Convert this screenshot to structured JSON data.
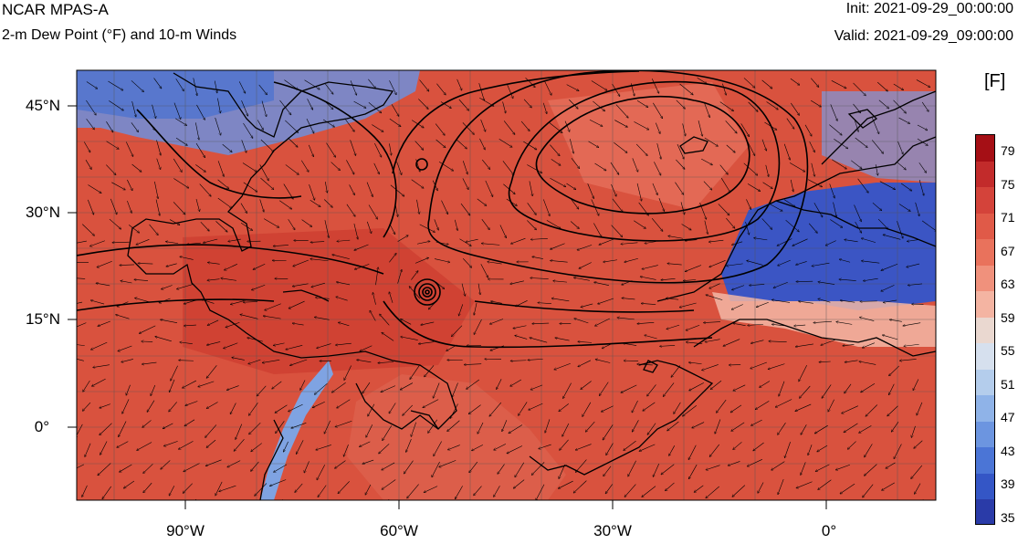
{
  "header": {
    "title": "NCAR MPAS-A",
    "subtitle": "2-m Dew Point (°F) and 10-m Winds",
    "init": "Init: 2021-09-29_00:00:00",
    "valid": "Valid: 2021-09-29_09:00:00"
  },
  "map": {
    "lat_labels": [
      {
        "text": "45°N",
        "lat": 45
      },
      {
        "text": "30°N",
        "lat": 30
      },
      {
        "text": "15°N",
        "lat": 15
      },
      {
        "text": "0°",
        "lat": 0
      }
    ],
    "lon_labels": [
      {
        "text": "90°W",
        "lon": -90
      },
      {
        "text": "60°W",
        "lon": -60
      },
      {
        "text": "30°W",
        "lon": -30
      },
      {
        "text": "0°",
        "lon": 0
      }
    ],
    "extent": {
      "lon_min": -105,
      "lon_max": 15,
      "lat_min": -10,
      "lat_max": 50
    }
  },
  "colorbar": {
    "units": "[F]",
    "labels": [
      "79",
      "75",
      "71",
      "67",
      "63",
      "59",
      "55",
      "51",
      "47",
      "43",
      "39",
      "35"
    ],
    "colors": [
      "#a50f15",
      "#c22b2b",
      "#d4433a",
      "#e05a48",
      "#e9725c",
      "#f0917c",
      "#f4b4a2",
      "#ead8d0",
      "#d6e0ee",
      "#b4cdec",
      "#8fb3e8",
      "#6c95e0",
      "#4b75d6",
      "#3456c6",
      "#2a3ba8"
    ]
  }
}
